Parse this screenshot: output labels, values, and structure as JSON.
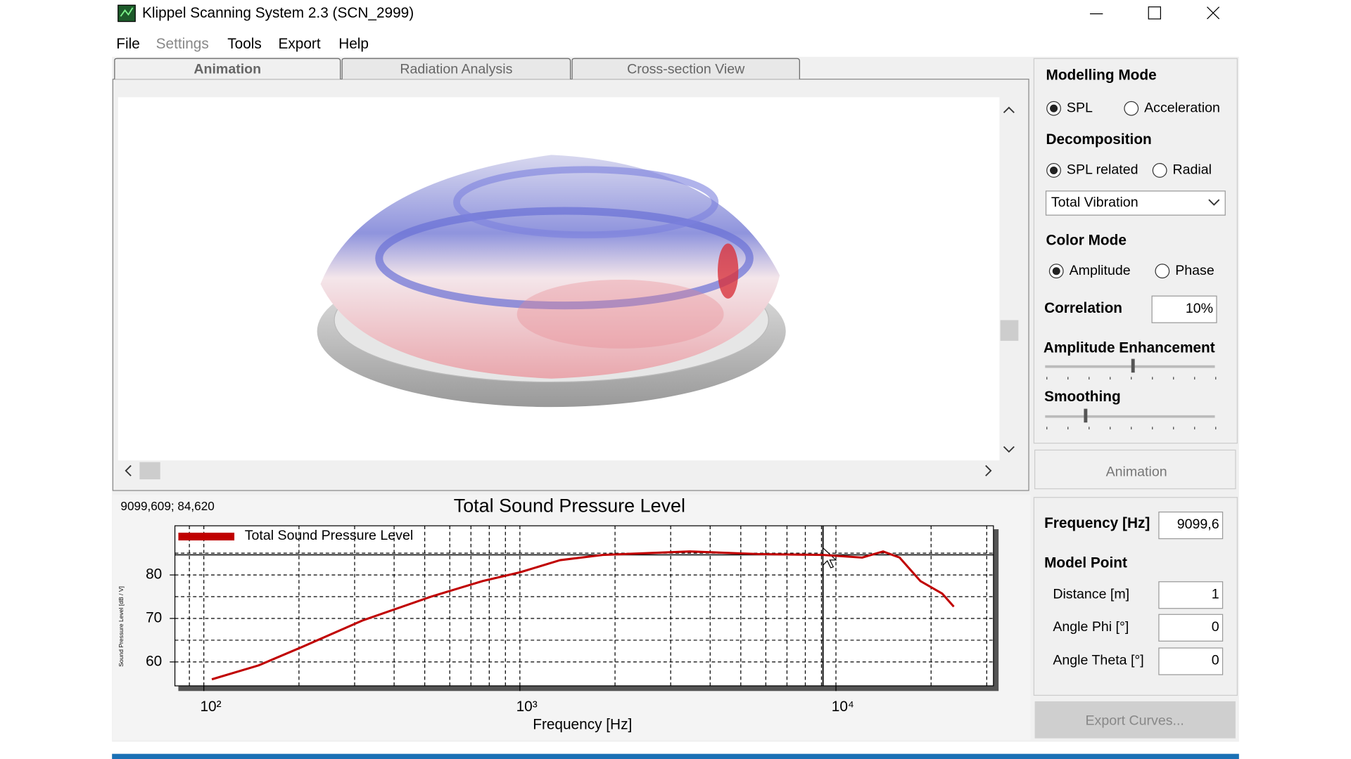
{
  "window": {
    "title": "Klippel Scanning System 2.3 (SCN_2999)"
  },
  "menu": [
    "File",
    "Settings",
    "Tools",
    "Export",
    "Help"
  ],
  "tabs": [
    "Animation",
    "Radiation Analysis",
    "Cross-section View"
  ],
  "panel": {
    "modelling_mode": {
      "label": "Modelling Mode",
      "options": [
        "SPL",
        "Acceleration"
      ],
      "selected": 0
    },
    "decomposition": {
      "label": "Decomposition",
      "options": [
        "SPL related",
        "Radial"
      ],
      "selected": 0,
      "dropdown": "Total Vibration"
    },
    "color_mode": {
      "label": "Color Mode",
      "options": [
        "Amplitude",
        "Phase"
      ],
      "selected": 0
    },
    "correlation": {
      "label": "Correlation",
      "value": "10%"
    },
    "amplitude_enhancement": "Amplitude Enhancement",
    "smoothing": "Smoothing",
    "animation_button": "Animation",
    "frequency": {
      "label": "Frequency [Hz]",
      "value": "9099,6"
    },
    "model_point": {
      "label": "Model Point",
      "fields": [
        {
          "label": "Distance [m]",
          "value": "1"
        },
        {
          "label": "Angle Phi [°]",
          "value": "0"
        },
        {
          "label": "Angle Theta [°]",
          "value": "0"
        }
      ]
    },
    "export_button": "Export Curves..."
  },
  "chart_data": {
    "type": "line",
    "title": "Total Sound Pressure Level",
    "cursor_label": "9099,609; 84,620",
    "cursor": {
      "x": 9099.609,
      "y": 84.62
    },
    "x_label": "Frequency [Hz]",
    "y_label": "Sound Pressure Level [dB / V]",
    "xscale": "log",
    "x": [
      106,
      149,
      204,
      317,
      523,
      763,
      1000,
      1340,
      1830,
      3450,
      5650,
      9100,
      12100,
      14100,
      15900,
      18500,
      21700,
      23600
    ],
    "series": [
      {
        "name": "Total Sound Pressure Level",
        "color": "#c00000",
        "values": [
          56,
          59.2,
          63.4,
          69.5,
          75,
          78.6,
          80.6,
          83.4,
          84.6,
          85.4,
          84.8,
          84.6,
          84,
          85.4,
          84,
          78.6,
          75.7,
          72.7
        ]
      }
    ],
    "xlim": [
      81,
      31500
    ],
    "ylim": [
      54.5,
      91.3
    ],
    "xticks": [
      {
        "value": 100,
        "label": "10²"
      },
      {
        "value": 1000,
        "label": "10³"
      },
      {
        "value": 10000,
        "label": "10⁴"
      }
    ],
    "yticks": [
      60,
      70,
      80
    ],
    "x_minor_ticks": [
      90,
      200,
      300,
      400,
      500,
      600,
      700,
      800,
      900,
      2000,
      3000,
      4000,
      5000,
      6000,
      7000,
      8000,
      9000,
      20000,
      30000
    ],
    "y_minor_ticks": [
      65,
      75,
      85
    ],
    "grid": true,
    "legend": "top-left"
  }
}
